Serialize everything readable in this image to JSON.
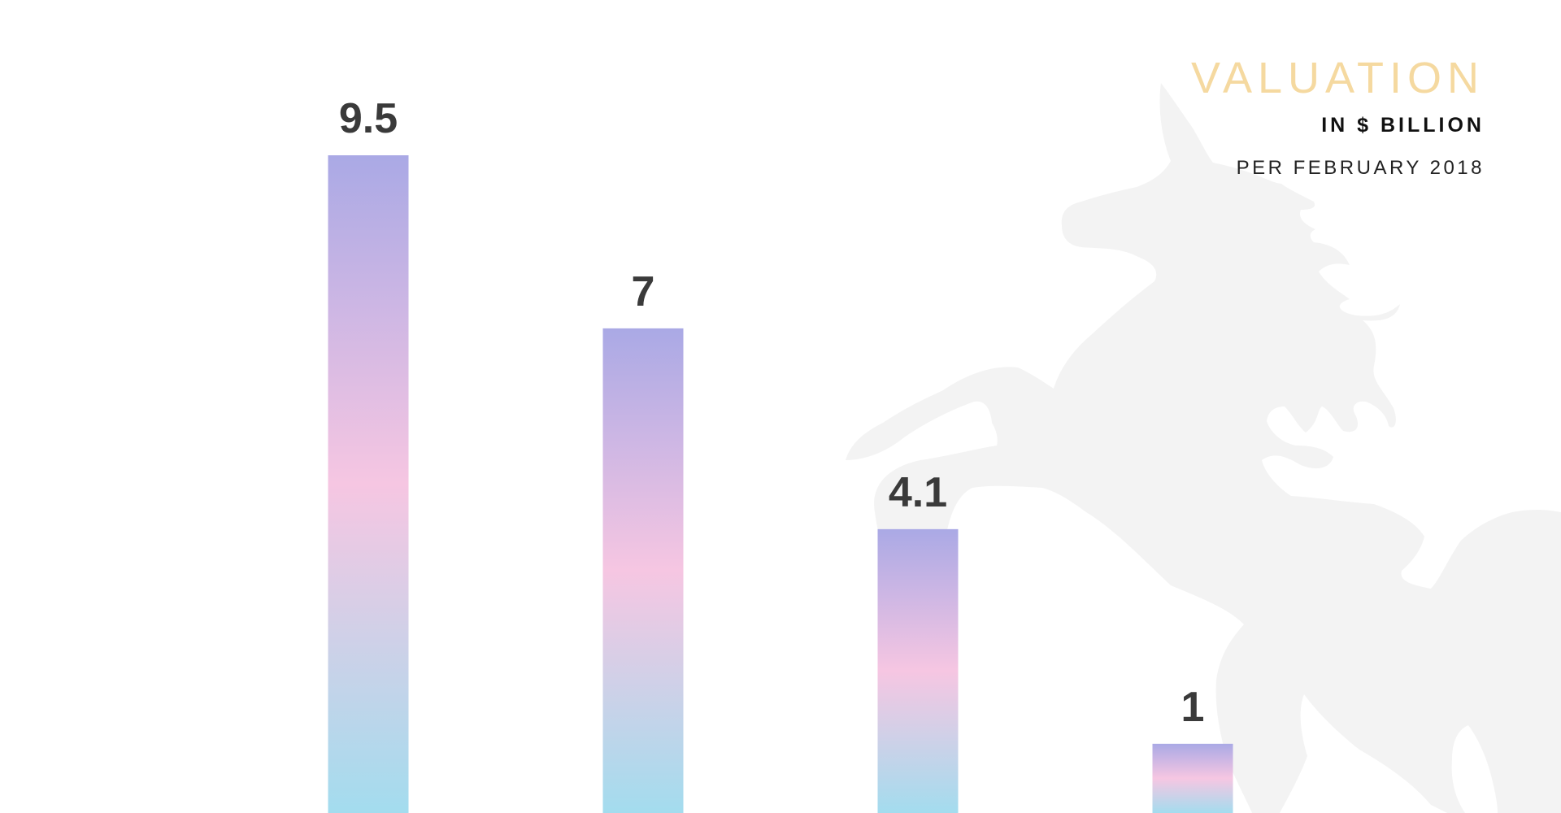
{
  "chart_data": {
    "type": "bar",
    "title": "VALUATION",
    "subtitle": "IN $ BILLION",
    "note": "PER FEBRUARY 2018",
    "categories": [
      "",
      "",
      "",
      ""
    ],
    "values": [
      9.5,
      7,
      4.1,
      1
    ],
    "value_labels": [
      "9.5",
      "7",
      "4.1",
      "1"
    ],
    "xlabel": "",
    "ylabel": "",
    "ylim": [
      0,
      9.5
    ],
    "grid": false,
    "legend": "none",
    "background_image": "unicorn-silhouette"
  },
  "colors": {
    "title": "#f5d9a0",
    "bar_top": "#aaa9e5",
    "bar_middle": "#f6c6e2",
    "bar_bottom": "#a3dcee",
    "label": "#3a3a3a",
    "silhouette": "#f3f3f3"
  }
}
